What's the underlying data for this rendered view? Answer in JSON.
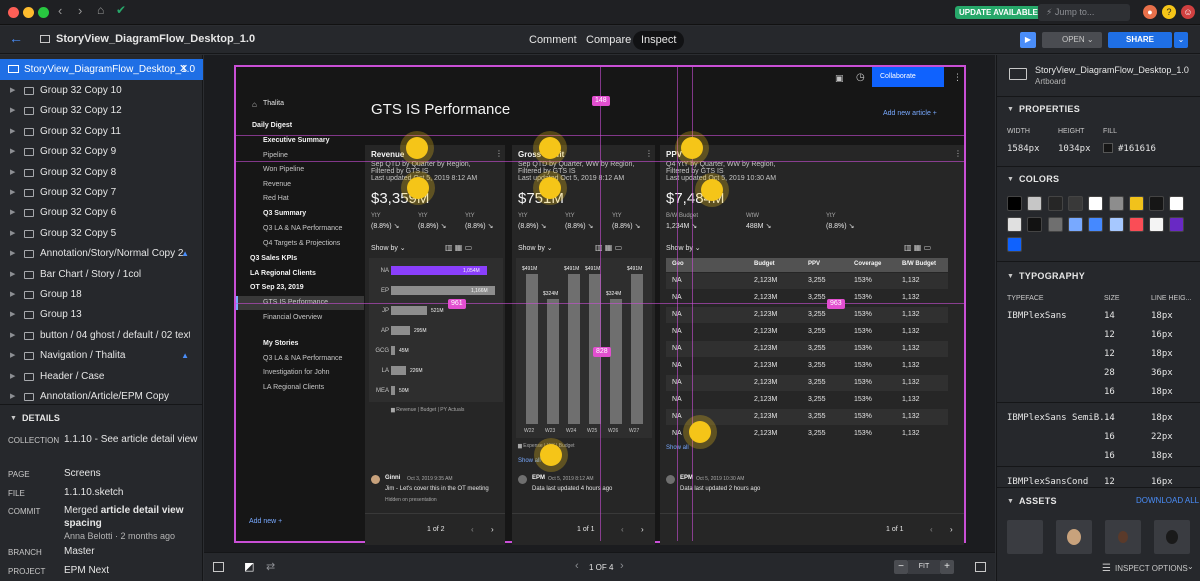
{
  "titlebar": {
    "update_label": "UPDATE AVAILABLE",
    "jump_placeholder": "Jump to..."
  },
  "toolbar": {
    "document_title": "StoryView_DiagramFlow_Desktop_1.0",
    "tabs": [
      "Comment",
      "Compare",
      "Inspect"
    ],
    "active_tab": "Inspect",
    "open_label": "OPEN",
    "share_label": "SHARE"
  },
  "layers": {
    "selected": "StoryView_DiagramFlow_Desktop_1.0",
    "items": [
      {
        "label": "Group 32 Copy 10"
      },
      {
        "label": "Group 32 Copy 12"
      },
      {
        "label": "Group 32 Copy 11"
      },
      {
        "label": "Group 32 Copy 9"
      },
      {
        "label": "Group 32 Copy 8"
      },
      {
        "label": "Group 32 Copy 7"
      },
      {
        "label": "Group 32 Copy 6"
      },
      {
        "label": "Group 32 Copy 5"
      },
      {
        "label": "Annotation/Story/Normal Copy 2"
      },
      {
        "label": "Bar Chart / Story / 1col"
      },
      {
        "label": "Group 18"
      },
      {
        "label": "Group 13"
      },
      {
        "label": "button / 04 ghost / default / 02 text a..."
      },
      {
        "label": "Navigation / Thalita"
      },
      {
        "label": "Header / Case"
      },
      {
        "label": "Annotation/Article/EPM Copy"
      }
    ]
  },
  "details": {
    "title": "DETAILS",
    "collection_label": "COLLECTION",
    "collection": "1.1.10 - See article detail view",
    "page_label": "PAGE",
    "page": "Screens",
    "file_label": "FILE",
    "file": "1.1.10.sketch",
    "commit_label": "COMMIT",
    "commit_prefix": "Merged ",
    "commit_bold": "article detail view",
    "commit_line2": "spacing",
    "commit_author": "Anna Belotti · 2 months ago",
    "branch_label": "BRANCH",
    "branch": "Master",
    "project_label": "PROJECT",
    "project": "EPM Next"
  },
  "bottombar": {
    "page_indicator": "1 OF 4",
    "fit_label": "FIT",
    "minus": "−",
    "plus": "+"
  },
  "inspector": {
    "artboard_name": "StoryView_DiagramFlow_Desktop_1.0",
    "artboard_type": "Artboard",
    "properties_title": "PROPERTIES",
    "width_label": "WIDTH",
    "height_label": "HEIGHT",
    "fill_label": "FILL",
    "width": "1584px",
    "height": "1034px",
    "fill": "#161616",
    "colors_title": "COLORS",
    "colors": [
      "#000000",
      "#c6c6c6",
      "#262626",
      "#393939",
      "#ffffff",
      "#8d8d8d",
      "#f1c21b",
      "#161616",
      "#ffffff",
      "#e0e0e0",
      "#121212",
      "#6f6f6f",
      "#78a9ff",
      "#4589ff",
      "#a6c8ff",
      "#fa4d56",
      "#f4f4f4",
      "#6929c4",
      "#0f62fe"
    ],
    "typography_title": "TYPOGRAPHY",
    "typeface_label": "TYPEFACE",
    "size_label": "SIZE",
    "line_height_label": "LINE HEIG...",
    "typography": [
      {
        "face": "IBMPlexSans",
        "size": "14",
        "lh": "18px"
      },
      {
        "face": "",
        "size": "12",
        "lh": "16px"
      },
      {
        "face": "",
        "size": "12",
        "lh": "18px"
      },
      {
        "face": "",
        "size": "28",
        "lh": "36px"
      },
      {
        "face": "",
        "size": "16",
        "lh": "18px"
      },
      {
        "face": "IBMPlexSans SemiB...",
        "size": "14",
        "lh": "18px"
      },
      {
        "face": "",
        "size": "16",
        "lh": "22px"
      },
      {
        "face": "",
        "size": "16",
        "lh": "18px"
      },
      {
        "face": "IBMPlexSansCond",
        "size": "12",
        "lh": "16px"
      }
    ],
    "assets_title": "ASSETS",
    "download_all": "DOWNLOAD ALL",
    "inspect_options": "INSPECT OPTIONS"
  },
  "artboard": {
    "user": "Thalita",
    "collaborate": "Collaborate",
    "page_title": "GTS IS Performance",
    "add_article": "Add new article  +",
    "nav": {
      "daily_digest": "Daily Digest",
      "exec_summary": "Executive Summary",
      "exec_items": [
        "Pipeline",
        "Won Pipeline",
        "Revenue",
        "Red Hat"
      ],
      "q3_summary": "Q3 Summary",
      "q3_items": [
        "Q3 LA & NA Performance",
        "Q4 Targets & Projections"
      ],
      "q3_sales": "Q3 Sales KPIs",
      "la_regional": "LA Regional Clients",
      "ot_sep": "OT Sep 23, 2019",
      "ot_items": [
        "GTS IS Performance",
        "Financial Overview"
      ],
      "my_stories": "My Stories",
      "my_items": [
        "Q3 LA & NA Performance",
        "Investigation for John",
        "LA Regional Clients"
      ],
      "add_new": "Add new  +"
    },
    "measures": {
      "top": "148",
      "left": "961",
      "right": "963",
      "mid": "828"
    },
    "cards": [
      {
        "title": "Revenue",
        "sub1": "Sep QTD by Quarter by Region,",
        "sub2": "Filtered by GTS IS",
        "updated": "Last updated Oct 5, 2019 8:12 AM",
        "value": "$3,359M",
        "kpis": [
          {
            "label": "YtY",
            "value": "(8.8%) ↘"
          },
          {
            "label": "YtY",
            "value": "(8.8%) ↘"
          },
          {
            "label": "YtY",
            "value": "(8.8%) ↘"
          }
        ],
        "show_by": "Show by ⌄",
        "bars": [
          {
            "cat": "NA",
            "label": "1,054M"
          },
          {
            "cat": "EP",
            "label": "1,166M"
          },
          {
            "cat": "JP",
            "label": "521M"
          },
          {
            "cat": "AP",
            "label": "295M"
          },
          {
            "cat": "GCG",
            "label": "45M"
          },
          {
            "cat": "LA",
            "label": "226M"
          },
          {
            "cat": "MEA",
            "label": "50M"
          }
        ],
        "legend": [
          "Revenue",
          "Budget",
          "PY Actuals"
        ],
        "comment_user": "Ginni",
        "comment_time": "Oct 3, 2019 9:35 AM",
        "comment_text": "Jim - Let's cover this in the OT meeting",
        "comment_note": "Hidden on presentation",
        "pager": "1 of 2"
      },
      {
        "title": "Gross Profit",
        "sub1": "Sep QTD by Quarter, WW by Region,",
        "sub2": "Filtered by GTS IS",
        "updated": "Last updated Oct 5, 2019 8:12 AM",
        "value": "$751M",
        "kpis": [
          {
            "label": "YtY",
            "value": "(8.8%) ↘"
          },
          {
            "label": "YtY",
            "value": "(8.8%) ↘"
          },
          {
            "label": "YtY",
            "value": "(8.8%) ↘"
          }
        ],
        "show_by": "Show by ⌄",
        "columns": [
          {
            "cat": "W22",
            "label": "$491M"
          },
          {
            "cat": "W23",
            "label": "$324M"
          },
          {
            "cat": "W24",
            "label": "$491M"
          },
          {
            "cat": "W25",
            "label": "$491M"
          },
          {
            "cat": "W26",
            "label": "$324M"
          },
          {
            "cat": "W27",
            "label": "$491M"
          }
        ],
        "legend": [
          "Expense",
          "YtY",
          "Budget"
        ],
        "show_all": "Show all",
        "comment_user": "EPM",
        "comment_time": "Oct 5, 2019 8:12 AM",
        "comment_text": "Data last updated 4 hours ago",
        "pager": "1 of 1"
      },
      {
        "title": "PPV",
        "sub1": "Q4 YtY by Quarter, WW by Region,",
        "sub2": "Filtered by GTS IS",
        "updated": "Last updated Oct 5, 2019 10:30 AM",
        "value": "$7,484M",
        "kpis": [
          {
            "label": "B/W Budget",
            "value": "1,234M ↘"
          },
          {
            "label": "WtW",
            "value": "488M ↘"
          },
          {
            "label": "YtY",
            "value": "(8.8%) ↘"
          }
        ],
        "show_by": "Show by ⌄",
        "table_headers": [
          "Geo",
          "Budget",
          "PPV",
          "Coverage",
          "B/W Budget"
        ],
        "table_rows": [
          [
            "NA",
            "2,123M",
            "3,255",
            "153%",
            "1,132"
          ],
          [
            "NA",
            "2,123M",
            "3,255",
            "153%",
            "1,132"
          ],
          [
            "NA",
            "2,123M",
            "3,255",
            "153%",
            "1,132"
          ],
          [
            "NA",
            "2,123M",
            "3,255",
            "153%",
            "1,132"
          ],
          [
            "NA",
            "2,123M",
            "3,255",
            "153%",
            "1,132"
          ],
          [
            "NA",
            "2,123M",
            "3,255",
            "153%",
            "1,132"
          ],
          [
            "NA",
            "2,123M",
            "3,255",
            "153%",
            "1,132"
          ],
          [
            "NA",
            "2,123M",
            "3,255",
            "153%",
            "1,132"
          ],
          [
            "NA",
            "2,123M",
            "3,255",
            "153%",
            "1,132"
          ],
          [
            "NA",
            "2,123M",
            "3,255",
            "153%",
            "1,132"
          ]
        ],
        "show_all": "Show all",
        "comment_user": "EPM",
        "comment_time": "Oct 5, 2019 10:30 AM",
        "comment_text": "Data last updated 2 hours ago",
        "pager": "1 of 1"
      }
    ]
  }
}
